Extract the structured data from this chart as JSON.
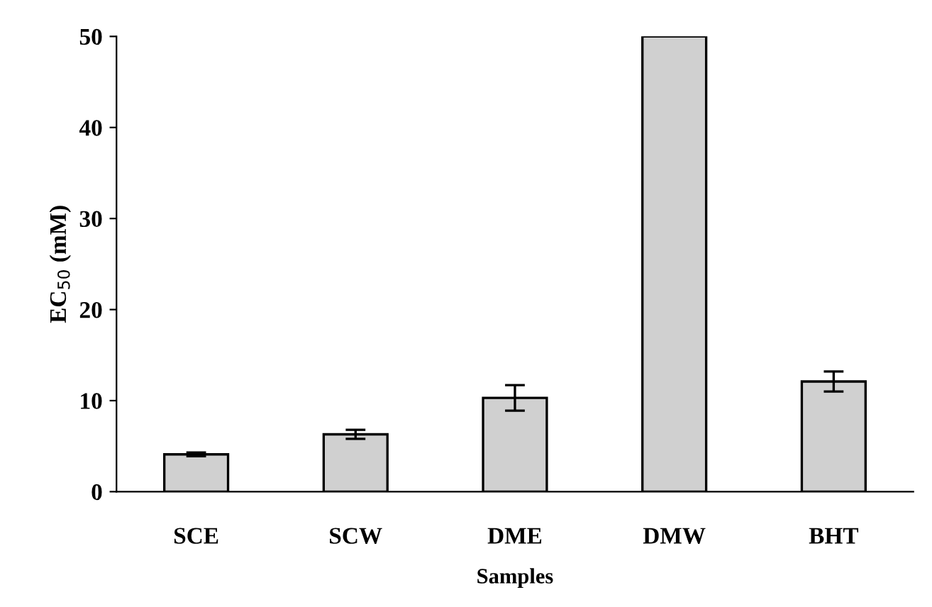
{
  "chart_data": {
    "type": "bar",
    "xlabel": "Samples",
    "ylabel": "EC$_{50}$ (mM)",
    "categories": [
      "SCE",
      "SCW",
      "DME",
      "DMW",
      "BHT"
    ],
    "values": [
      4.1,
      6.3,
      10.3,
      50,
      12.1
    ],
    "errors": [
      0.2,
      0.5,
      1.4,
      null,
      1.1
    ],
    "color": "#d0d0d0",
    "ylim": [
      0,
      50
    ],
    "yticks": [
      0,
      10,
      20,
      30,
      40,
      50
    ],
    "grid": false,
    "legend": false
  }
}
